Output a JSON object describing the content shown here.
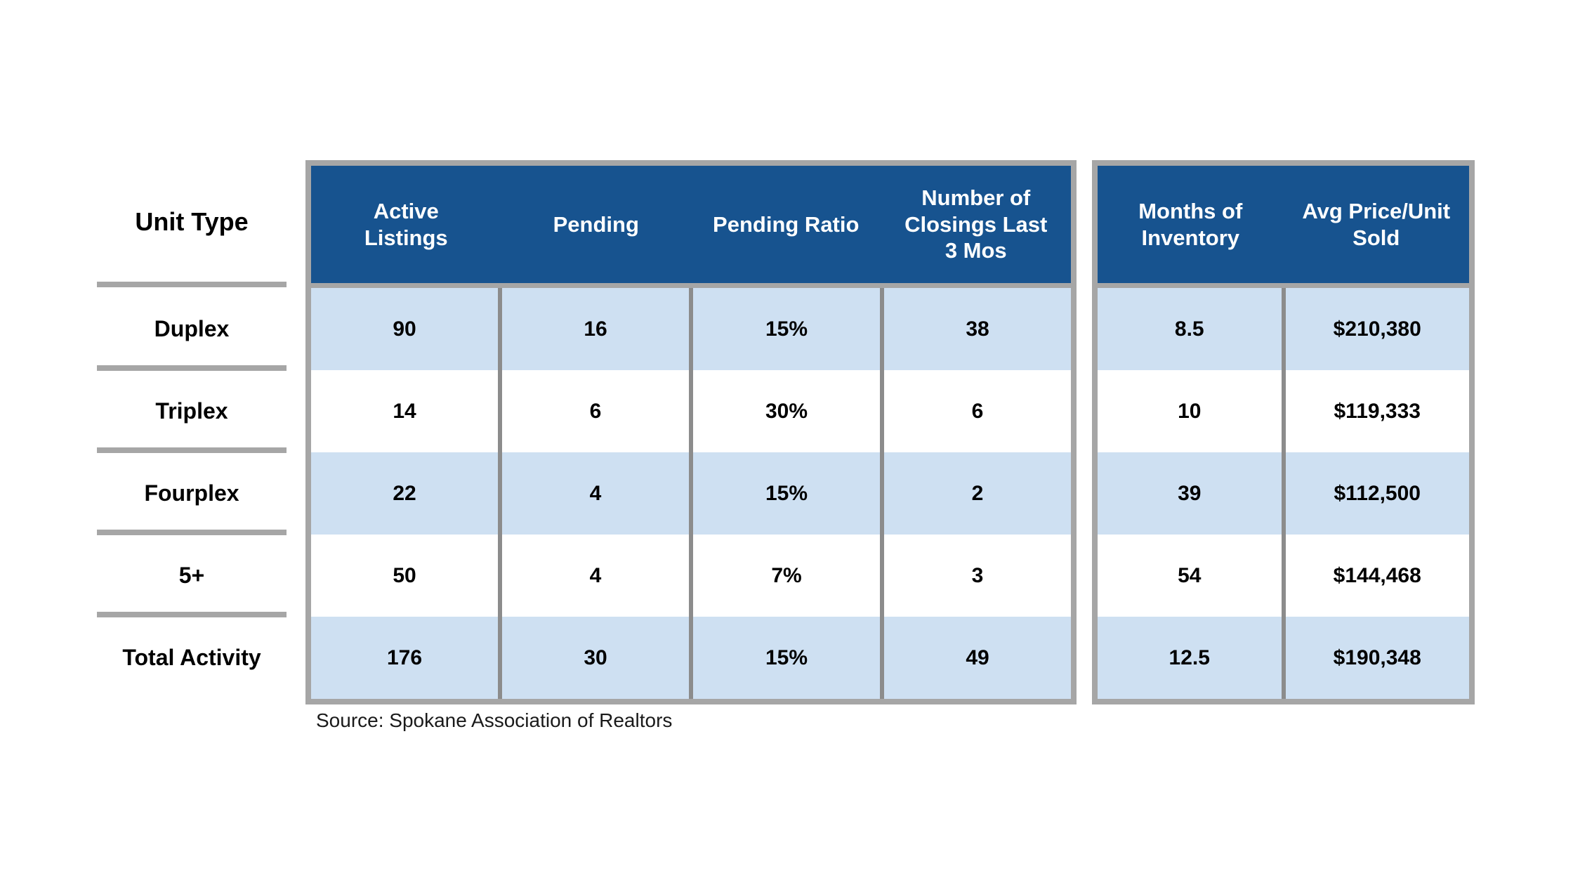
{
  "chart_data": {
    "type": "table",
    "unit_type_header": "Unit Type",
    "group1_headers": [
      "Active Listings",
      "Pending",
      "Pending Ratio",
      "Number of Closings Last 3 Mos"
    ],
    "group2_headers": [
      "Months of Inventory",
      "Avg Price/Unit Sold"
    ],
    "rows": [
      {
        "label": "Duplex",
        "cells": [
          "90",
          "16",
          "15%",
          "38",
          "8.5",
          "$210,380"
        ]
      },
      {
        "label": "Triplex",
        "cells": [
          "14",
          "6",
          "30%",
          "6",
          "10",
          "$119,333"
        ]
      },
      {
        "label": "Fourplex",
        "cells": [
          "22",
          "4",
          "15%",
          "2",
          "39",
          "$112,500"
        ]
      },
      {
        "label": "5+",
        "cells": [
          "50",
          "4",
          "7%",
          "3",
          "54",
          "$144,468"
        ]
      },
      {
        "label": "Total Activity",
        "cells": [
          "176",
          "30",
          "15%",
          "49",
          "12.5",
          "$190,348"
        ]
      }
    ],
    "source": "Source: Spokane Association of Realtors",
    "colors": {
      "header_blue": "#17538F",
      "row_blue": "#CEE0F2",
      "border_gray": "#A6A6A6",
      "separator_gray": "#8C8C8C",
      "header_text": "#FFFFFF",
      "body_text": "#000000"
    },
    "layout_hints": {
      "banding": "odd rows light blue, even rows white",
      "grid": "vertical separators only inside boxes"
    }
  }
}
